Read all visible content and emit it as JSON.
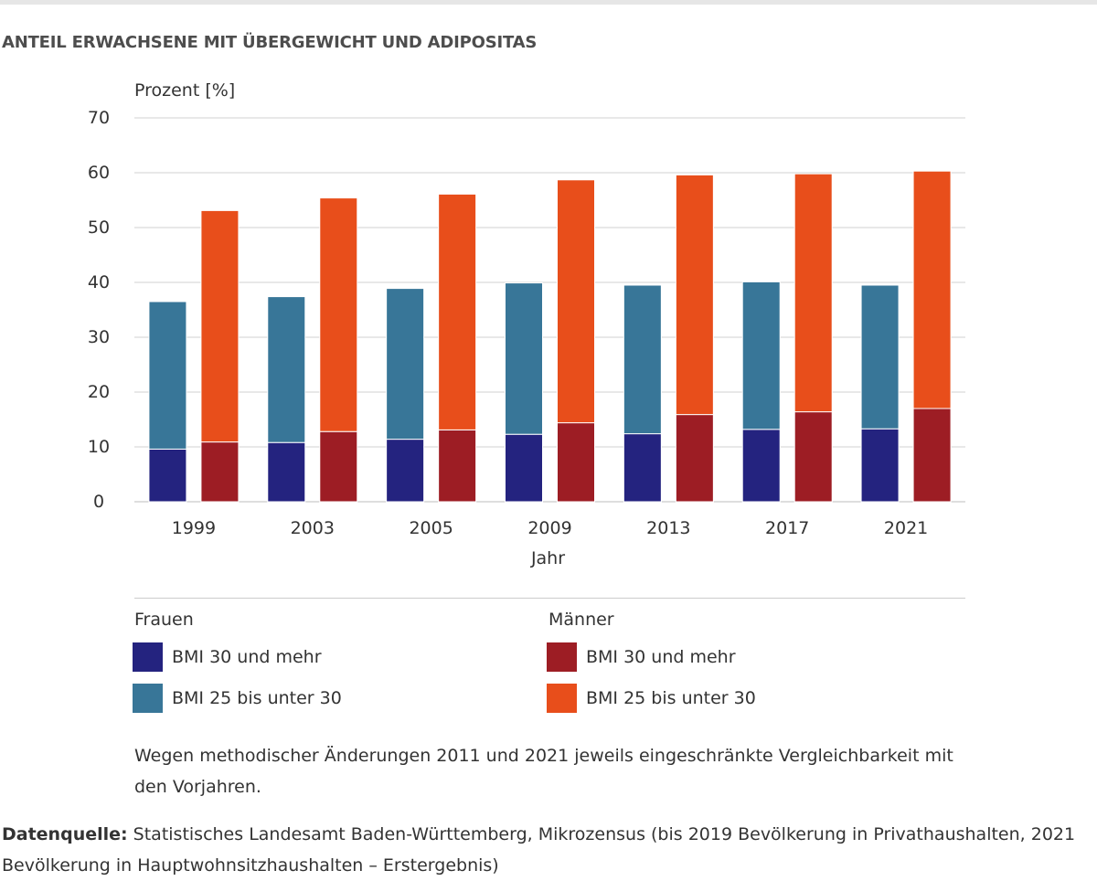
{
  "title": "ANTEIL ERWACHSENE MIT ÜBERGEWICHT UND ADIPOSITAS",
  "chart_data": {
    "type": "bar",
    "stacked": true,
    "grouped": true,
    "title": "ANTEIL ERWACHSENE MIT ÜBERGEWICHT UND ADIPOSITAS",
    "ylabel": "Prozent [%]",
    "xlabel": "Jahr",
    "ylim": [
      0,
      70
    ],
    "yticks": [
      "0",
      "10",
      "20",
      "30",
      "40",
      "50",
      "60",
      "70"
    ],
    "categories": [
      "1999",
      "2003",
      "2005",
      "2009",
      "2013",
      "2017",
      "2021"
    ],
    "groups": [
      {
        "name": "Frauen",
        "series": [
          {
            "name": "BMI 30 und mehr",
            "color": "#24237f",
            "values": [
              9.6,
              10.8,
              11.4,
              12.3,
              12.4,
              13.2,
              13.3
            ]
          },
          {
            "name": "BMI 25 bis unter 30",
            "color": "#387698",
            "values": [
              26.9,
              26.6,
              27.5,
              27.6,
              27.1,
              26.9,
              26.2
            ]
          }
        ]
      },
      {
        "name": "Männer",
        "series": [
          {
            "name": "BMI 30 und mehr",
            "color": "#9d1d24",
            "values": [
              10.9,
              12.8,
              13.1,
              14.4,
              15.9,
              16.4,
              17.0
            ]
          },
          {
            "name": "BMI 25 bis unter 30",
            "color": "#e84e1b",
            "values": [
              42.2,
              42.6,
              43.0,
              44.3,
              43.7,
              43.4,
              43.3
            ]
          }
        ]
      }
    ]
  },
  "legend": {
    "frauen_title": "Frauen",
    "maenner_title": "Männer",
    "items": [
      {
        "label": "BMI 30 und mehr",
        "color": "#24237f"
      },
      {
        "label": "BMI 25 bis unter 30",
        "color": "#387698"
      },
      {
        "label": "BMI 30 und mehr",
        "color": "#9d1d24"
      },
      {
        "label": "BMI 25 bis unter 30",
        "color": "#e84e1b"
      }
    ]
  },
  "note": "Wegen methodischer Änderungen 2011 und 2021 jeweils eingeschränkte Vergleichbarkeit mit den Vorjahren.",
  "source": {
    "label": "Datenquelle:",
    "text": " Statistisches Landesamt Baden-Württemberg, Mikrozensus (bis 2019 Bevölkerung in Privathaushalten, 2021 Bevölkerung in Hauptwohnsitzhaushalten – Erstergebnis)"
  }
}
